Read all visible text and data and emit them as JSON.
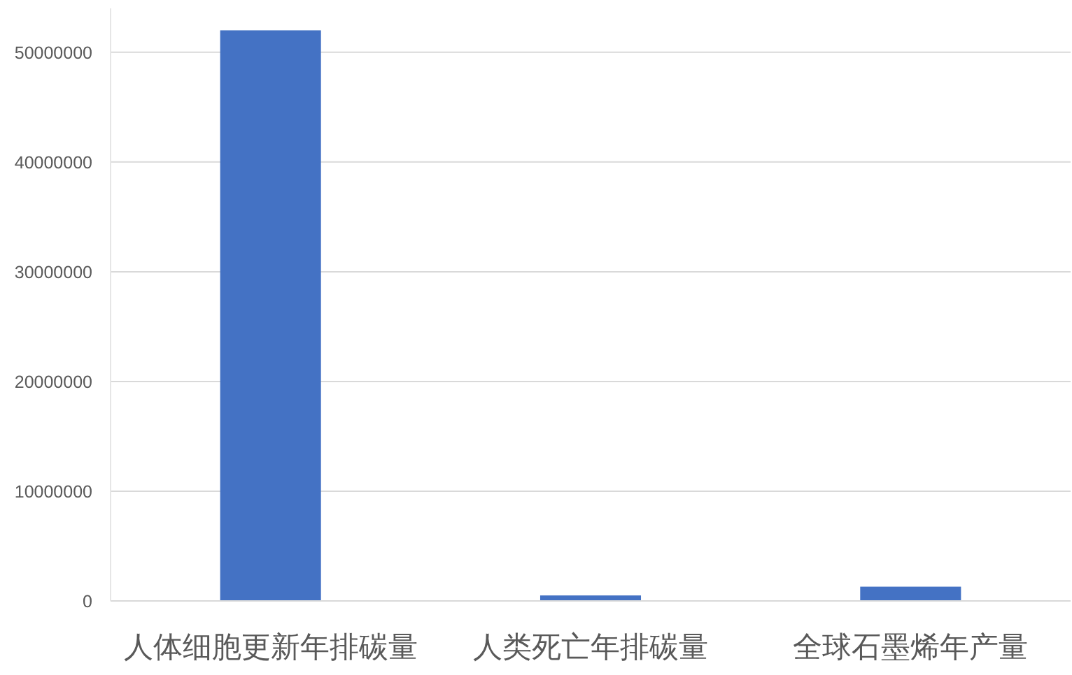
{
  "chart_data": {
    "type": "bar",
    "categories": [
      "人体细胞更新年排碳量",
      "人类死亡年排碳量",
      "全球石墨烯年产量"
    ],
    "values": [
      52000000,
      500000,
      1300000
    ],
    "color": "#4472c4",
    "ylim": [
      0,
      54000000
    ],
    "yticks": [
      0,
      10000000,
      20000000,
      30000000,
      40000000,
      50000000
    ],
    "grid": "y"
  }
}
